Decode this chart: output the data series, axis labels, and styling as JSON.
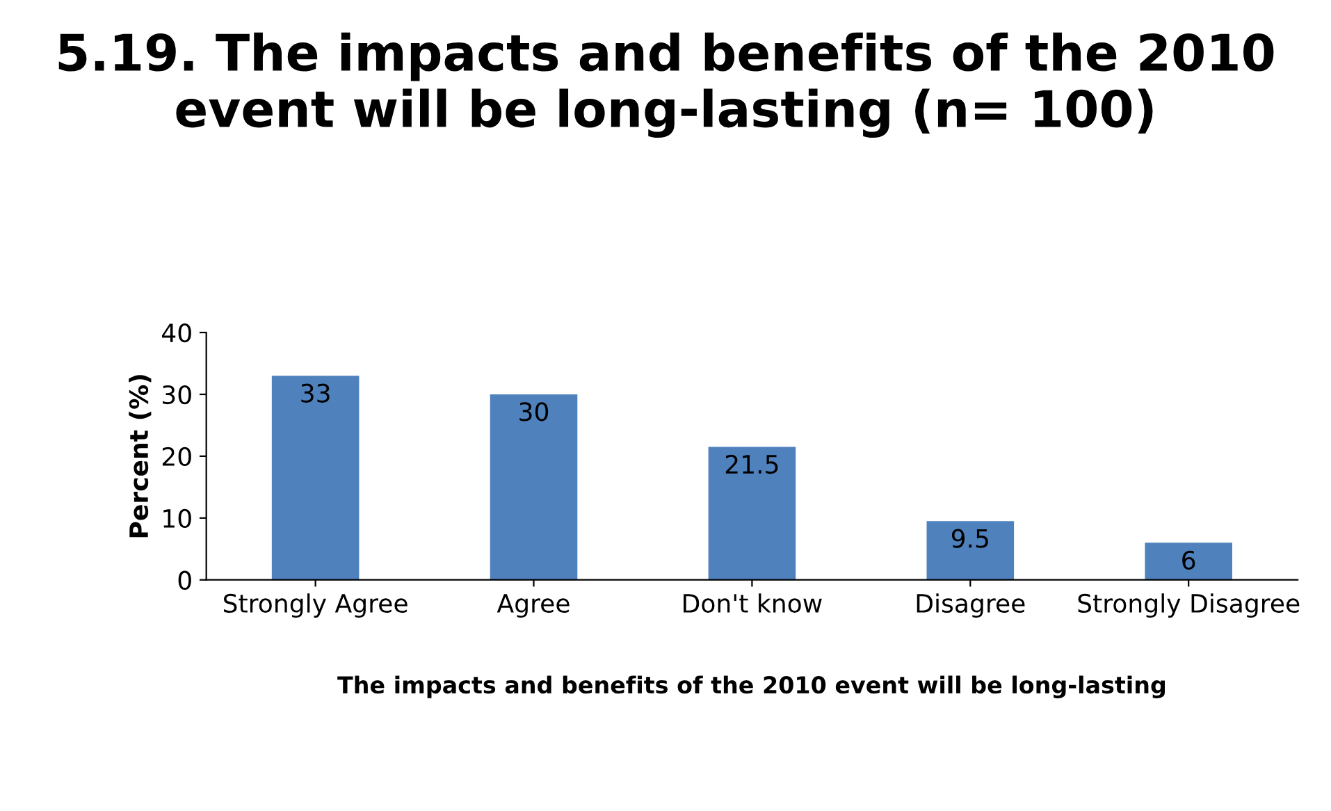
{
  "chart_data": {
    "type": "bar",
    "title": "5.19. The impacts and benefits of the 2010 event will be long-lasting (n= 100)",
    "xlabel": "The impacts and benefits of the 2010 event will be long-lasting",
    "ylabel": "Percent (%)",
    "categories": [
      "Strongly Agree",
      "Agree",
      "Don't know",
      "Disagree",
      "Strongly Disagree"
    ],
    "values": [
      33,
      30,
      21.5,
      9.5,
      6
    ],
    "color": "#4f81bd",
    "ylim": [
      0,
      40
    ],
    "yticks": [
      0,
      10,
      20,
      30,
      40
    ],
    "grid": false,
    "data_labels": true
  }
}
